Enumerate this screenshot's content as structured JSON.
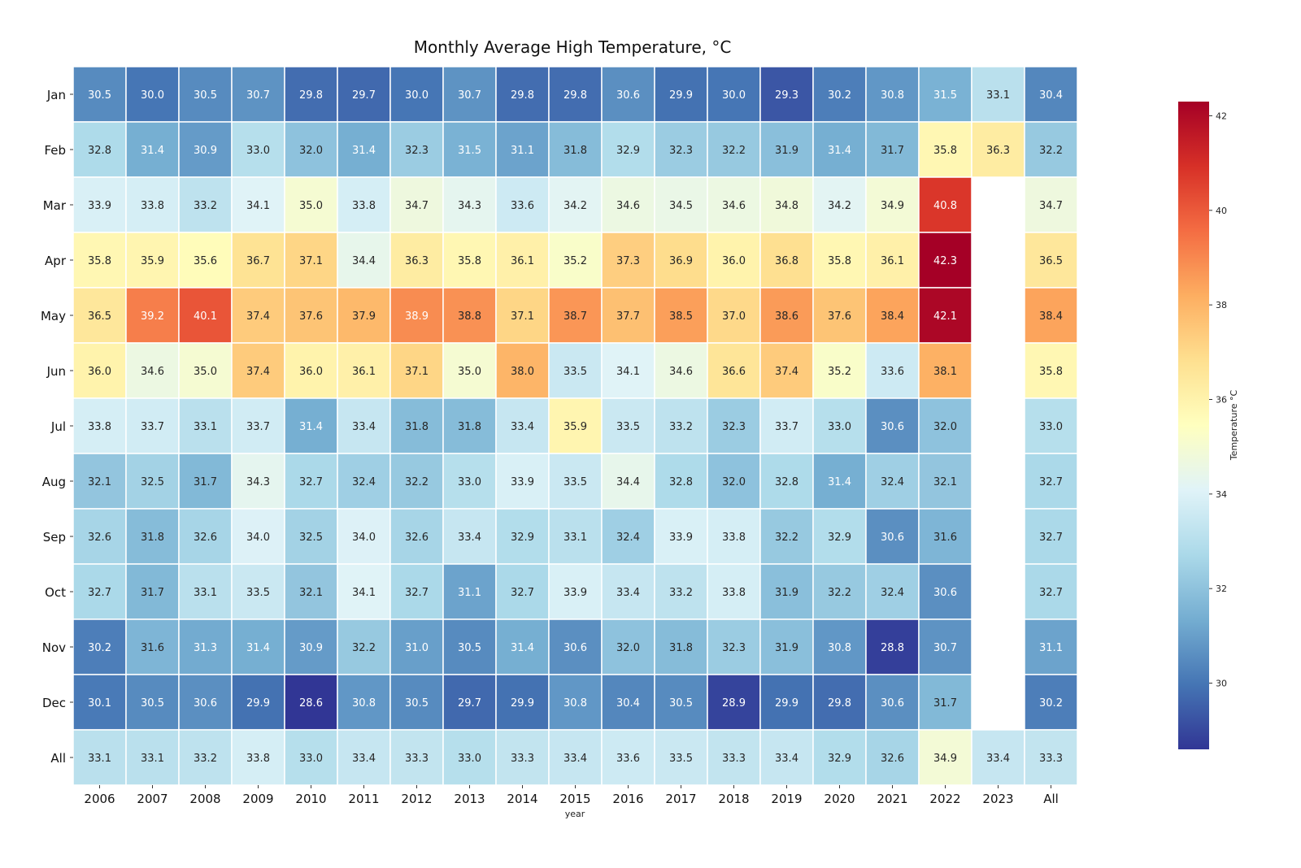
{
  "chart_data": {
    "type": "heatmap",
    "title": "Monthly Average High Temperature, °C",
    "xlabel": "year",
    "ylabel": "",
    "colorbar_label": "Temperature °C",
    "colormap": "RdYlBu_r",
    "vlim": [
      28.6,
      42.3
    ],
    "colorbar_ticks": [
      30,
      32,
      34,
      36,
      38,
      40,
      42
    ],
    "x_categories": [
      "2006",
      "2007",
      "2008",
      "2009",
      "2010",
      "2011",
      "2012",
      "2013",
      "2014",
      "2015",
      "2016",
      "2017",
      "2018",
      "2019",
      "2020",
      "2021",
      "2022",
      "2023",
      "All"
    ],
    "y_categories": [
      "Jan",
      "Feb",
      "Mar",
      "Apr",
      "May",
      "Jun",
      "Jul",
      "Aug",
      "Sep",
      "Oct",
      "Nov",
      "Dec",
      "All"
    ],
    "values": [
      [
        30.5,
        30.0,
        30.5,
        30.7,
        29.8,
        29.7,
        30.0,
        30.7,
        29.8,
        29.8,
        30.6,
        29.9,
        30.0,
        29.3,
        30.2,
        30.8,
        31.5,
        33.1,
        30.4
      ],
      [
        32.8,
        31.4,
        30.9,
        33.0,
        32.0,
        31.4,
        32.3,
        31.5,
        31.1,
        31.8,
        32.9,
        32.3,
        32.2,
        31.9,
        31.4,
        31.7,
        35.8,
        36.3,
        32.2
      ],
      [
        33.9,
        33.8,
        33.2,
        34.1,
        35.0,
        33.8,
        34.7,
        34.3,
        33.6,
        34.2,
        34.6,
        34.5,
        34.6,
        34.8,
        34.2,
        34.9,
        40.8,
        null,
        34.7
      ],
      [
        35.8,
        35.9,
        35.6,
        36.7,
        37.1,
        34.4,
        36.3,
        35.8,
        36.1,
        35.2,
        37.3,
        36.9,
        36.0,
        36.8,
        35.8,
        36.1,
        42.3,
        null,
        36.5
      ],
      [
        36.5,
        39.2,
        40.1,
        37.4,
        37.6,
        37.9,
        38.9,
        38.8,
        37.1,
        38.7,
        37.7,
        38.5,
        37.0,
        38.6,
        37.6,
        38.4,
        42.1,
        null,
        38.4
      ],
      [
        36.0,
        34.6,
        35.0,
        37.4,
        36.0,
        36.1,
        37.1,
        35.0,
        38.0,
        33.5,
        34.1,
        34.6,
        36.6,
        37.4,
        35.2,
        33.6,
        38.1,
        null,
        35.8
      ],
      [
        33.8,
        33.7,
        33.1,
        33.7,
        31.4,
        33.4,
        31.8,
        31.8,
        33.4,
        35.9,
        33.5,
        33.2,
        32.3,
        33.7,
        33.0,
        30.6,
        32.0,
        null,
        33.0
      ],
      [
        32.1,
        32.5,
        31.7,
        34.3,
        32.7,
        32.4,
        32.2,
        33.0,
        33.9,
        33.5,
        34.4,
        32.8,
        32.0,
        32.8,
        31.4,
        32.4,
        32.1,
        null,
        32.7
      ],
      [
        32.6,
        31.8,
        32.6,
        34.0,
        32.5,
        34.0,
        32.6,
        33.4,
        32.9,
        33.1,
        32.4,
        33.9,
        33.8,
        32.2,
        32.9,
        30.6,
        31.6,
        null,
        32.7
      ],
      [
        32.7,
        31.7,
        33.1,
        33.5,
        32.1,
        34.1,
        32.7,
        31.1,
        32.7,
        33.9,
        33.4,
        33.2,
        33.8,
        31.9,
        32.2,
        32.4,
        30.6,
        null,
        32.7
      ],
      [
        30.2,
        31.6,
        31.3,
        31.4,
        30.9,
        32.2,
        31.0,
        30.5,
        31.4,
        30.6,
        32.0,
        31.8,
        32.3,
        31.9,
        30.8,
        28.8,
        30.7,
        null,
        31.1
      ],
      [
        30.1,
        30.5,
        30.6,
        29.9,
        28.6,
        30.8,
        30.5,
        29.7,
        29.9,
        30.8,
        30.4,
        30.5,
        28.9,
        29.9,
        29.8,
        30.6,
        31.7,
        null,
        30.2
      ],
      [
        33.1,
        33.1,
        33.2,
        33.8,
        33.0,
        33.4,
        33.3,
        33.0,
        33.3,
        33.4,
        33.6,
        33.5,
        33.3,
        33.4,
        32.9,
        32.6,
        34.9,
        33.4,
        33.3
      ]
    ],
    "grid": false,
    "legend": "colorbar-right"
  }
}
